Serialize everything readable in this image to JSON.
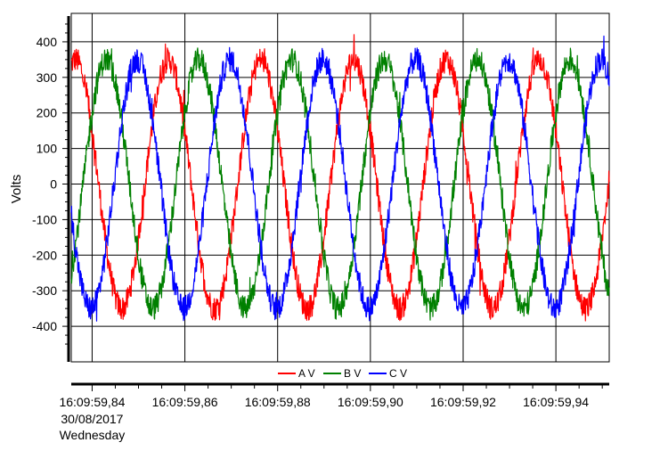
{
  "chart_data": {
    "type": "line",
    "title": "",
    "ylabel": "Volts",
    "xlabel": "",
    "ylim": [
      -500,
      480
    ],
    "xlim": [
      0.8355,
      0.9515
    ],
    "x_unit": "seconds after 16:09:59",
    "y_ticks": [
      400,
      300,
      200,
      100,
      0,
      -100,
      -200,
      -300,
      -400
    ],
    "y_tick_labels": [
      "400",
      "300",
      "200",
      "100",
      "0",
      "-100",
      "-200",
      "-300",
      "-400"
    ],
    "x_ticks": [
      0.84,
      0.86,
      0.88,
      0.9,
      0.92,
      0.94
    ],
    "x_tick_labels": [
      "16:09:59,84",
      "16:09:59,86",
      "16:09:59,88",
      "16:09:59,90",
      "16:09:59,92",
      "16:09:59,94"
    ],
    "x_tick_sublabels": [
      "30/08/2017",
      "Wednesday"
    ],
    "grid": true,
    "legend_position": "bottom",
    "series": [
      {
        "name": "A V",
        "color": "#ff0000",
        "frequency_hz": 50,
        "amplitude": 350,
        "phase_deg_at_0_84": 155,
        "noise": 35
      },
      {
        "name": "B V",
        "color": "#008000",
        "frequency_hz": 50,
        "amplitude": 350,
        "phase_deg_at_0_84": 35,
        "noise": 35
      },
      {
        "name": "C V",
        "color": "#0000ff",
        "frequency_hz": 50,
        "amplitude": 350,
        "phase_deg_at_0_84": -85,
        "noise": 35
      }
    ]
  }
}
